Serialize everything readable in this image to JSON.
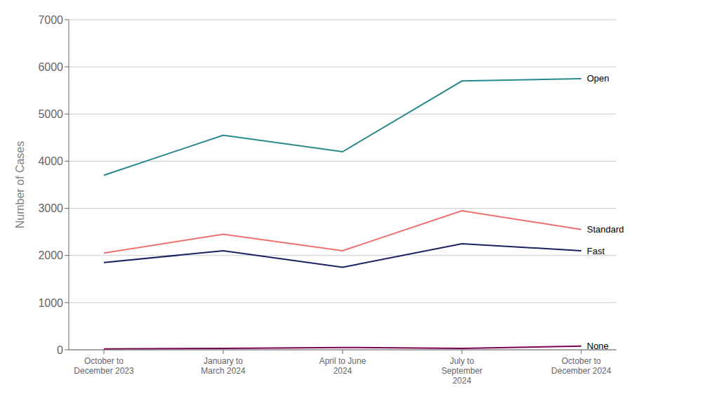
{
  "chart_data": {
    "type": "line",
    "categories": [
      "October to\nDecember 2023",
      "January to\nMarch 2024",
      "April to June\n2024",
      "July to\nSeptember\n2024",
      "October to\nDecember 2024"
    ],
    "series": [
      {
        "name": "Open",
        "color": "#2a8a8a",
        "values": [
          3700,
          4550,
          4200,
          5700,
          5750
        ]
      },
      {
        "name": "Standard",
        "color": "#f07070",
        "values": [
          2050,
          2450,
          2100,
          2950,
          2550
        ]
      },
      {
        "name": "Fast",
        "color": "#1a2060",
        "values": [
          1850,
          2100,
          1750,
          2250,
          2100
        ]
      },
      {
        "name": "None",
        "color": "#7b0050",
        "values": [
          20,
          30,
          50,
          30,
          80
        ]
      }
    ],
    "ylabel": "Number of Cases",
    "ylim": [
      0,
      7000
    ],
    "yticks": [
      0,
      1000,
      2000,
      3000,
      4000,
      5000,
      6000,
      7000
    ],
    "grid": true
  }
}
